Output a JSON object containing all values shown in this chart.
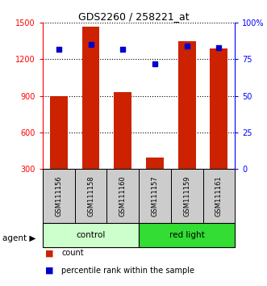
{
  "title": "GDS2260 / 258221_at",
  "samples": [
    "GSM111156",
    "GSM111158",
    "GSM111160",
    "GSM111157",
    "GSM111159",
    "GSM111161"
  ],
  "counts": [
    900,
    1470,
    930,
    390,
    1350,
    1290
  ],
  "percentile_ranks": [
    82,
    85,
    82,
    72,
    84,
    83
  ],
  "groups": [
    "control",
    "control",
    "control",
    "red light",
    "red light",
    "red light"
  ],
  "ylim_left": [
    300,
    1500
  ],
  "ylim_right": [
    0,
    100
  ],
  "yticks_left": [
    300,
    600,
    900,
    1200,
    1500
  ],
  "yticks_right": [
    0,
    25,
    50,
    75,
    100
  ],
  "ytick_labels_right": [
    "0",
    "25",
    "50",
    "75",
    "100%"
  ],
  "bar_color": "#cc2200",
  "dot_color": "#0000cc",
  "control_color": "#ccffcc",
  "redlight_color": "#33dd33",
  "label_bg_color": "#cccccc",
  "bar_width": 0.55
}
